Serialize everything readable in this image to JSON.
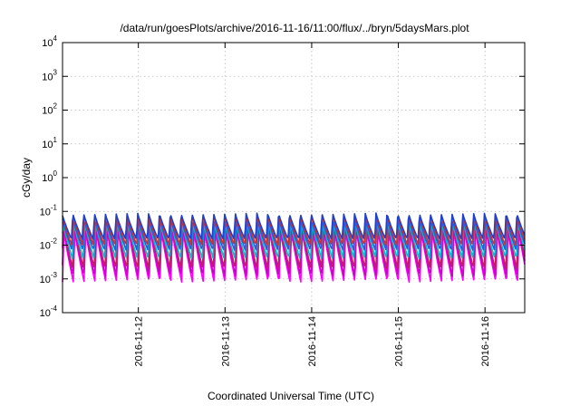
{
  "chart_data": {
    "type": "line",
    "title": "/data/run/goesPlots/archive/2016-11-16/11:00/flux/../bryn/5daysMars.plot",
    "xlabel": "Coordinated Universal Time (UTC)",
    "ylabel": "cGy/day",
    "y_scale": "log",
    "ylim": [
      0.0001,
      10000
    ],
    "xlim": [
      "2016-11-11 03:00",
      "2016-11-16 11:00"
    ],
    "grid": true,
    "x_ticks": [
      {
        "label": "2016-11-12",
        "value": "2016-11-12 00:00"
      },
      {
        "label": "2016-11-13",
        "value": "2016-11-13 00:00"
      },
      {
        "label": "2016-11-14",
        "value": "2016-11-14 00:00"
      },
      {
        "label": "2016-11-15",
        "value": "2016-11-15 00:00"
      },
      {
        "label": "2016-11-16",
        "value": "2016-11-16 00:00"
      }
    ],
    "y_ticks": [
      {
        "base": "10",
        "exp": "-4",
        "value": 0.0001
      },
      {
        "base": "10",
        "exp": "-3",
        "value": 0.001
      },
      {
        "base": "10",
        "exp": "-2",
        "value": 0.01
      },
      {
        "base": "10",
        "exp": "-1",
        "value": 0.1
      },
      {
        "base": "10",
        "exp": "0",
        "value": 1
      },
      {
        "base": "10",
        "exp": "1",
        "value": 10
      },
      {
        "base": "10",
        "exp": "2",
        "value": 100
      },
      {
        "base": "10",
        "exp": "3",
        "value": 1000
      },
      {
        "base": "10",
        "exp": "4",
        "value": 10000
      }
    ],
    "cycle_hours": 3,
    "series": [
      {
        "color": "#ff00ff",
        "peak": 0.03,
        "trough": 0.0008
      },
      {
        "color": "#cc00cc",
        "peak": 0.04,
        "trough": 0.0012
      },
      {
        "color": "#c02060",
        "peak": 0.05,
        "trough": 0.002
      },
      {
        "color": "#00bcd4",
        "peak": 0.05,
        "trough": 0.004
      },
      {
        "color": "#3355dd",
        "peak": 0.06,
        "trough": 0.007
      },
      {
        "color": "#d03030",
        "peak": 0.08,
        "trough": 0.01
      },
      {
        "color": "#2040cc",
        "peak": 0.09,
        "trough": 0.015
      }
    ]
  }
}
